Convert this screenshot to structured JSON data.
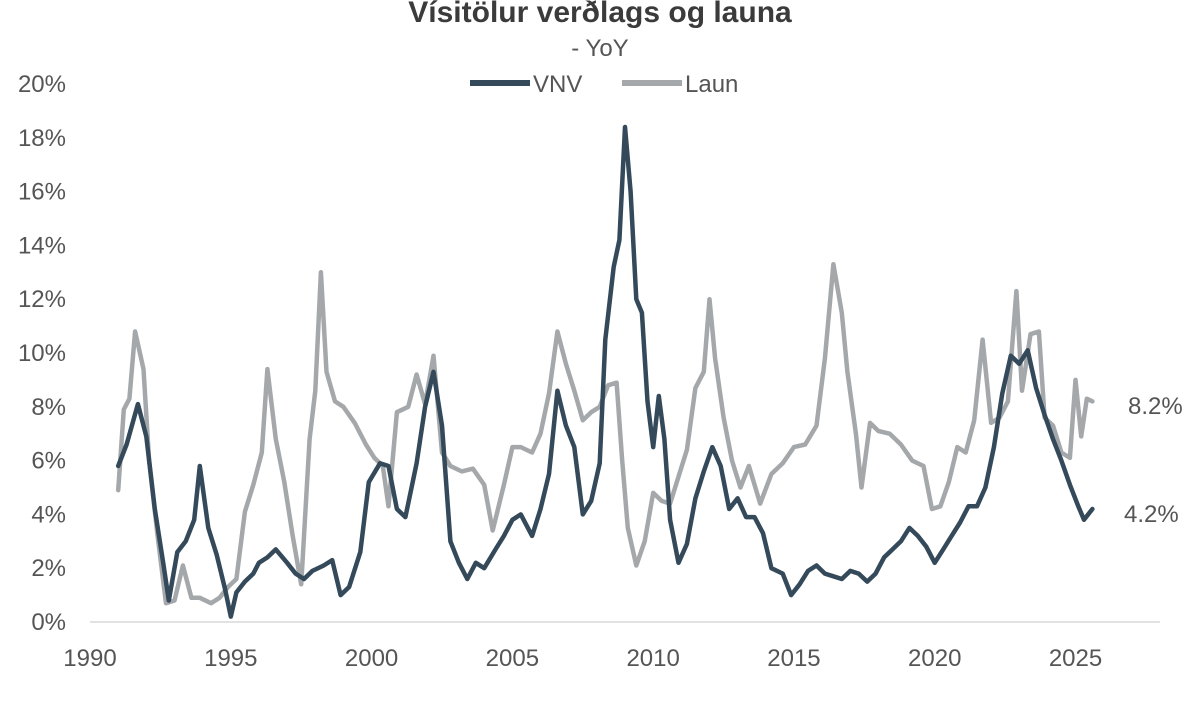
{
  "chart_data": {
    "type": "line",
    "title": "Vísitölur verðlags og launa",
    "subtitle": "- YoY",
    "x_ticks": [
      "1990",
      "1995",
      "2000",
      "2005",
      "2010",
      "2015",
      "2020",
      "2025"
    ],
    "x_range": [
      1990,
      2028
    ],
    "y_ticks": [
      "0%",
      "2%",
      "4%",
      "6%",
      "8%",
      "10%",
      "12%",
      "14%",
      "16%",
      "18%",
      "20%"
    ],
    "ylim": [
      0,
      20
    ],
    "grid": false,
    "legend_position": "top",
    "series": [
      {
        "name": "VNV",
        "color": "#34495a",
        "end_label": "4.2%",
        "points": [
          [
            1991.0,
            5.8
          ],
          [
            1991.3,
            6.6
          ],
          [
            1991.7,
            8.1
          ],
          [
            1992.0,
            6.9
          ],
          [
            1992.3,
            4.2
          ],
          [
            1992.6,
            2.2
          ],
          [
            1992.8,
            0.8
          ],
          [
            1993.1,
            2.6
          ],
          [
            1993.4,
            3.0
          ],
          [
            1993.7,
            3.8
          ],
          [
            1993.9,
            5.8
          ],
          [
            1994.2,
            3.5
          ],
          [
            1994.5,
            2.5
          ],
          [
            1994.8,
            1.2
          ],
          [
            1995.0,
            0.2
          ],
          [
            1995.2,
            1.1
          ],
          [
            1995.5,
            1.5
          ],
          [
            1995.8,
            1.8
          ],
          [
            1996.0,
            2.2
          ],
          [
            1996.3,
            2.4
          ],
          [
            1996.6,
            2.7
          ],
          [
            1997.0,
            2.2
          ],
          [
            1997.3,
            1.8
          ],
          [
            1997.6,
            1.6
          ],
          [
            1997.9,
            1.9
          ],
          [
            1998.3,
            2.1
          ],
          [
            1998.6,
            2.3
          ],
          [
            1998.9,
            1.0
          ],
          [
            1999.2,
            1.3
          ],
          [
            1999.6,
            2.6
          ],
          [
            1999.9,
            5.2
          ],
          [
            2000.3,
            5.9
          ],
          [
            2000.6,
            5.8
          ],
          [
            2000.9,
            4.2
          ],
          [
            2001.2,
            3.9
          ],
          [
            2001.6,
            5.9
          ],
          [
            2001.9,
            8.0
          ],
          [
            2002.2,
            9.3
          ],
          [
            2002.5,
            7.3
          ],
          [
            2002.8,
            3.0
          ],
          [
            2003.1,
            2.2
          ],
          [
            2003.4,
            1.6
          ],
          [
            2003.7,
            2.2
          ],
          [
            2004.0,
            2.0
          ],
          [
            2004.4,
            2.7
          ],
          [
            2004.7,
            3.2
          ],
          [
            2005.0,
            3.8
          ],
          [
            2005.3,
            4.0
          ],
          [
            2005.7,
            3.2
          ],
          [
            2006.0,
            4.2
          ],
          [
            2006.3,
            5.5
          ],
          [
            2006.6,
            8.6
          ],
          [
            2006.9,
            7.3
          ],
          [
            2007.2,
            6.5
          ],
          [
            2007.5,
            4.0
          ],
          [
            2007.8,
            4.5
          ],
          [
            2008.1,
            5.9
          ],
          [
            2008.3,
            10.5
          ],
          [
            2008.6,
            13.2
          ],
          [
            2008.8,
            14.2
          ],
          [
            2009.0,
            18.4
          ],
          [
            2009.2,
            16.0
          ],
          [
            2009.4,
            12.0
          ],
          [
            2009.6,
            11.5
          ],
          [
            2009.8,
            8.2
          ],
          [
            2010.0,
            6.5
          ],
          [
            2010.2,
            8.4
          ],
          [
            2010.4,
            6.8
          ],
          [
            2010.6,
            3.8
          ],
          [
            2010.9,
            2.2
          ],
          [
            2011.2,
            2.9
          ],
          [
            2011.5,
            4.6
          ],
          [
            2011.8,
            5.6
          ],
          [
            2012.1,
            6.5
          ],
          [
            2012.4,
            5.8
          ],
          [
            2012.7,
            4.2
          ],
          [
            2013.0,
            4.6
          ],
          [
            2013.3,
            3.9
          ],
          [
            2013.6,
            3.9
          ],
          [
            2013.9,
            3.3
          ],
          [
            2014.2,
            2.0
          ],
          [
            2014.6,
            1.8
          ],
          [
            2014.9,
            1.0
          ],
          [
            2015.2,
            1.4
          ],
          [
            2015.5,
            1.9
          ],
          [
            2015.8,
            2.1
          ],
          [
            2016.1,
            1.8
          ],
          [
            2016.4,
            1.7
          ],
          [
            2016.7,
            1.6
          ],
          [
            2017.0,
            1.9
          ],
          [
            2017.3,
            1.8
          ],
          [
            2017.6,
            1.5
          ],
          [
            2017.9,
            1.8
          ],
          [
            2018.2,
            2.4
          ],
          [
            2018.5,
            2.7
          ],
          [
            2018.8,
            3.0
          ],
          [
            2019.1,
            3.5
          ],
          [
            2019.4,
            3.2
          ],
          [
            2019.7,
            2.8
          ],
          [
            2020.0,
            2.2
          ],
          [
            2020.3,
            2.7
          ],
          [
            2020.6,
            3.2
          ],
          [
            2020.9,
            3.7
          ],
          [
            2021.2,
            4.3
          ],
          [
            2021.5,
            4.3
          ],
          [
            2021.8,
            5.0
          ],
          [
            2022.1,
            6.5
          ],
          [
            2022.4,
            8.5
          ],
          [
            2022.7,
            9.9
          ],
          [
            2023.0,
            9.6
          ],
          [
            2023.3,
            10.1
          ],
          [
            2023.6,
            8.7
          ],
          [
            2023.9,
            7.7
          ],
          [
            2024.2,
            6.8
          ],
          [
            2024.5,
            6.0
          ],
          [
            2024.8,
            5.1
          ],
          [
            2025.1,
            4.3
          ],
          [
            2025.3,
            3.8
          ],
          [
            2025.6,
            4.2
          ]
        ]
      },
      {
        "name": "Laun",
        "color": "#a5a8ab",
        "end_label": "8.2%",
        "points": [
          [
            1991.0,
            4.9
          ],
          [
            1991.2,
            7.9
          ],
          [
            1991.4,
            8.3
          ],
          [
            1991.6,
            10.8
          ],
          [
            1991.9,
            9.4
          ],
          [
            1992.1,
            6.0
          ],
          [
            1992.4,
            3.2
          ],
          [
            1992.7,
            0.7
          ],
          [
            1993.0,
            0.8
          ],
          [
            1993.3,
            2.1
          ],
          [
            1993.6,
            0.9
          ],
          [
            1993.9,
            0.9
          ],
          [
            1994.3,
            0.7
          ],
          [
            1994.6,
            0.9
          ],
          [
            1994.9,
            1.3
          ],
          [
            1995.2,
            1.6
          ],
          [
            1995.5,
            4.1
          ],
          [
            1995.8,
            5.1
          ],
          [
            1996.1,
            6.3
          ],
          [
            1996.3,
            9.4
          ],
          [
            1996.6,
            6.8
          ],
          [
            1996.9,
            5.2
          ],
          [
            1997.2,
            3.2
          ],
          [
            1997.5,
            1.4
          ],
          [
            1997.8,
            6.8
          ],
          [
            1998.0,
            8.6
          ],
          [
            1998.2,
            13.0
          ],
          [
            1998.4,
            9.3
          ],
          [
            1998.7,
            8.2
          ],
          [
            1999.0,
            8.0
          ],
          [
            1999.4,
            7.4
          ],
          [
            1999.8,
            6.6
          ],
          [
            2000.1,
            6.1
          ],
          [
            2000.4,
            5.8
          ],
          [
            2000.6,
            4.3
          ],
          [
            2000.9,
            7.8
          ],
          [
            2001.3,
            8.0
          ],
          [
            2001.6,
            9.2
          ],
          [
            2001.9,
            8.1
          ],
          [
            2002.2,
            9.9
          ],
          [
            2002.5,
            6.3
          ],
          [
            2002.8,
            5.8
          ],
          [
            2003.2,
            5.6
          ],
          [
            2003.6,
            5.7
          ],
          [
            2004.0,
            5.1
          ],
          [
            2004.3,
            3.4
          ],
          [
            2004.7,
            5.1
          ],
          [
            2005.0,
            6.5
          ],
          [
            2005.3,
            6.5
          ],
          [
            2005.7,
            6.3
          ],
          [
            2006.0,
            7.0
          ],
          [
            2006.3,
            8.5
          ],
          [
            2006.6,
            10.8
          ],
          [
            2006.9,
            9.6
          ],
          [
            2007.2,
            8.6
          ],
          [
            2007.5,
            7.5
          ],
          [
            2007.8,
            7.8
          ],
          [
            2008.1,
            8.0
          ],
          [
            2008.4,
            8.8
          ],
          [
            2008.7,
            8.9
          ],
          [
            2008.9,
            6.0
          ],
          [
            2009.1,
            3.5
          ],
          [
            2009.4,
            2.1
          ],
          [
            2009.7,
            3.0
          ],
          [
            2010.0,
            4.8
          ],
          [
            2010.3,
            4.5
          ],
          [
            2010.6,
            4.4
          ],
          [
            2010.9,
            5.4
          ],
          [
            2011.2,
            6.4
          ],
          [
            2011.5,
            8.7
          ],
          [
            2011.8,
            9.3
          ],
          [
            2012.0,
            12.0
          ],
          [
            2012.2,
            9.8
          ],
          [
            2012.5,
            7.6
          ],
          [
            2012.8,
            6.0
          ],
          [
            2013.1,
            5.0
          ],
          [
            2013.4,
            5.8
          ],
          [
            2013.8,
            4.4
          ],
          [
            2014.2,
            5.5
          ],
          [
            2014.6,
            5.9
          ],
          [
            2015.0,
            6.5
          ],
          [
            2015.4,
            6.6
          ],
          [
            2015.8,
            7.3
          ],
          [
            2016.1,
            9.8
          ],
          [
            2016.4,
            13.3
          ],
          [
            2016.7,
            11.5
          ],
          [
            2016.9,
            9.3
          ],
          [
            2017.2,
            7.0
          ],
          [
            2017.4,
            5.0
          ],
          [
            2017.7,
            7.4
          ],
          [
            2018.0,
            7.1
          ],
          [
            2018.4,
            7.0
          ],
          [
            2018.8,
            6.6
          ],
          [
            2019.2,
            6.0
          ],
          [
            2019.6,
            5.8
          ],
          [
            2019.9,
            4.2
          ],
          [
            2020.2,
            4.3
          ],
          [
            2020.5,
            5.2
          ],
          [
            2020.8,
            6.5
          ],
          [
            2021.1,
            6.3
          ],
          [
            2021.4,
            7.5
          ],
          [
            2021.7,
            10.5
          ],
          [
            2022.0,
            7.4
          ],
          [
            2022.3,
            7.6
          ],
          [
            2022.6,
            8.2
          ],
          [
            2022.9,
            12.3
          ],
          [
            2023.1,
            8.6
          ],
          [
            2023.4,
            10.7
          ],
          [
            2023.7,
            10.8
          ],
          [
            2023.9,
            7.6
          ],
          [
            2024.2,
            7.3
          ],
          [
            2024.5,
            6.3
          ],
          [
            2024.8,
            6.1
          ],
          [
            2025.0,
            9.0
          ],
          [
            2025.2,
            6.9
          ],
          [
            2025.4,
            8.3
          ],
          [
            2025.6,
            8.2
          ]
        ]
      }
    ]
  }
}
